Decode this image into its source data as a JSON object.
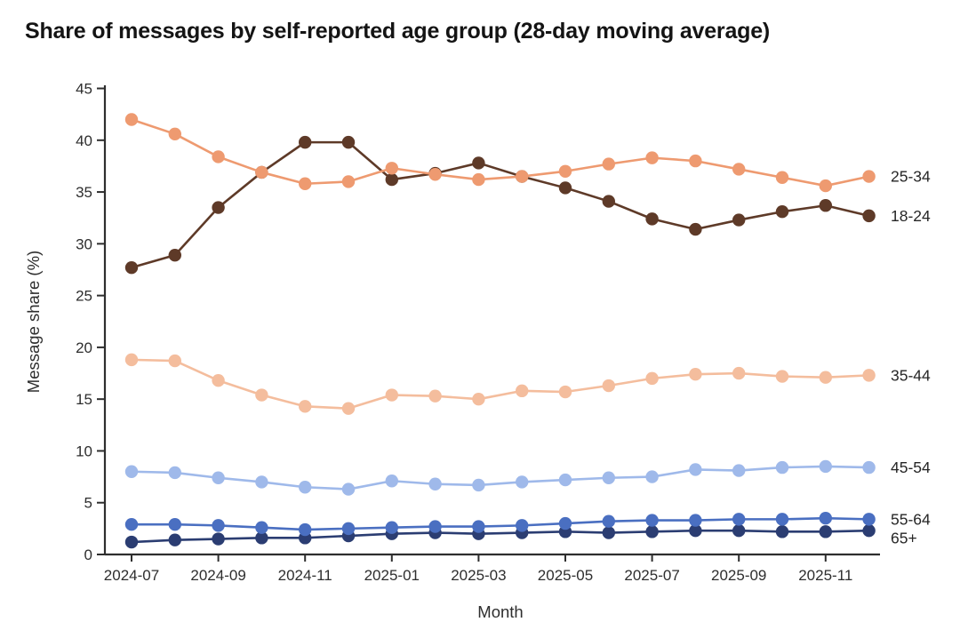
{
  "chart_data": {
    "type": "line",
    "title": "Share of messages by self-reported age group (28-day moving average)",
    "xlabel": "Month",
    "ylabel": "Message share (%)",
    "x": [
      "2024-07",
      "2024-08",
      "2024-09",
      "2024-10",
      "2024-11",
      "2024-12",
      "2025-01",
      "2025-02",
      "2025-03",
      "2025-04",
      "2025-05",
      "2025-06",
      "2025-07",
      "2025-08",
      "2025-09",
      "2025-10",
      "2025-11",
      "2025-12"
    ],
    "x_tick_labels": [
      "2024-07",
      "2024-09",
      "2024-11",
      "2025-01",
      "2025-03",
      "2025-05",
      "2025-07",
      "2025-09",
      "2025-11"
    ],
    "x_tick_every": 2,
    "y_ticks": [
      0,
      5,
      10,
      15,
      20,
      25,
      30,
      35,
      40,
      45
    ],
    "ylim": [
      0,
      45
    ],
    "grid": false,
    "legend_position": "right-end-labels",
    "axis_color": "#2e2e2e",
    "text_color": "#2e2e2e",
    "series": [
      {
        "name": "25-34",
        "color": "#EE9A70",
        "values": [
          42.0,
          40.6,
          38.4,
          36.9,
          35.8,
          36.0,
          37.3,
          36.7,
          36.2,
          36.5,
          37.0,
          37.7,
          38.3,
          38.0,
          37.2,
          36.4,
          35.6,
          36.5
        ]
      },
      {
        "name": "18-24",
        "color": "#5E3A28",
        "values": [
          27.7,
          28.9,
          33.5,
          36.9,
          39.8,
          39.8,
          36.2,
          36.8,
          37.8,
          36.5,
          35.4,
          34.1,
          32.4,
          31.4,
          32.3,
          33.1,
          33.7,
          32.7
        ]
      },
      {
        "name": "35-44",
        "color": "#F4BD9D",
        "values": [
          18.8,
          18.7,
          16.8,
          15.4,
          14.3,
          14.1,
          15.4,
          15.3,
          15.0,
          15.8,
          15.7,
          16.3,
          17.0,
          17.4,
          17.5,
          17.2,
          17.1,
          17.3
        ]
      },
      {
        "name": "45-54",
        "color": "#9FB9EA",
        "values": [
          8.0,
          7.9,
          7.4,
          7.0,
          6.5,
          6.3,
          7.1,
          6.8,
          6.7,
          7.0,
          7.2,
          7.4,
          7.5,
          8.2,
          8.1,
          8.4,
          8.5,
          8.4
        ]
      },
      {
        "name": "55-64",
        "color": "#4A6FC1",
        "values": [
          2.9,
          2.9,
          2.8,
          2.6,
          2.4,
          2.5,
          2.6,
          2.7,
          2.7,
          2.8,
          3.0,
          3.2,
          3.3,
          3.3,
          3.4,
          3.4,
          3.5,
          3.4
        ]
      },
      {
        "name": "65+",
        "color": "#2B3D72",
        "values": [
          1.2,
          1.4,
          1.5,
          1.6,
          1.6,
          1.8,
          2.0,
          2.1,
          2.0,
          2.1,
          2.2,
          2.1,
          2.2,
          2.3,
          2.3,
          2.2,
          2.2,
          2.3
        ]
      }
    ]
  }
}
